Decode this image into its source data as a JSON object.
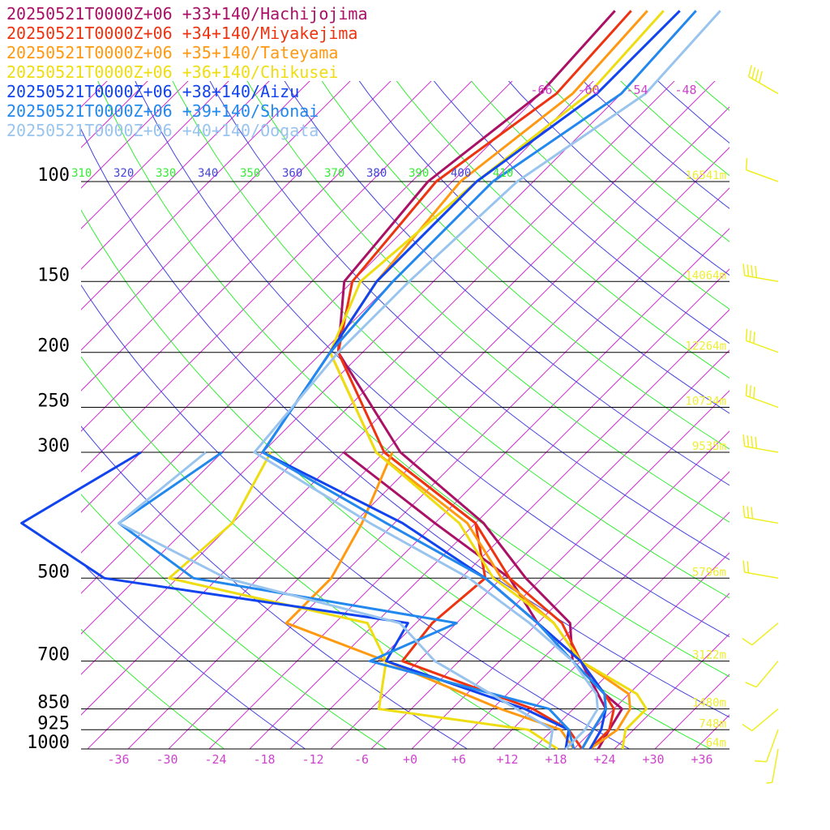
{
  "chart_data": {
    "type": "line",
    "title": "",
    "xlabel": "",
    "ylabel": "",
    "pressure_levels": [
      {
        "label": "100",
        "p": 100
      },
      {
        "label": "150",
        "p": 150
      },
      {
        "label": "200",
        "p": 200
      },
      {
        "label": "250",
        "p": 250
      },
      {
        "label": "300",
        "p": 300
      },
      {
        "label": "500",
        "p": 500
      },
      {
        "label": "700",
        "p": 700
      },
      {
        "label": "850",
        "p": 850
      },
      {
        "label": "925",
        "p": 925
      },
      {
        "label": "1000",
        "p": 1000
      }
    ],
    "temperature_ticks": [
      "-36",
      "-30",
      "-24",
      "-18",
      "-12",
      "-6",
      "+0",
      "+6",
      "+12",
      "+18",
      "+24",
      "+30",
      "+36"
    ],
    "temperature_tick_values": [
      -36,
      -30,
      -24,
      -18,
      -12,
      -6,
      0,
      6,
      12,
      18,
      24,
      30,
      36
    ],
    "upper_temperature_labels": [
      "-66",
      "-60",
      "-54",
      "-48"
    ],
    "theta_labels": [
      {
        "text": "310",
        "color": "#33ee33"
      },
      {
        "text": "320",
        "color": "#4444dd"
      },
      {
        "text": "330",
        "color": "#33ee33"
      },
      {
        "text": "340",
        "color": "#4444dd"
      },
      {
        "text": "350",
        "color": "#33ee33"
      },
      {
        "text": "360",
        "color": "#4444dd"
      },
      {
        "text": "370",
        "color": "#33ee33"
      },
      {
        "text": "380",
        "color": "#4444dd"
      },
      {
        "text": "390",
        "color": "#33ee33"
      },
      {
        "text": "400",
        "color": "#4444dd"
      },
      {
        "text": "410",
        "color": "#33ee33"
      }
    ],
    "height_labels": [
      {
        "p": 100,
        "text": "16541m"
      },
      {
        "p": 150,
        "text": "14064m"
      },
      {
        "p": 200,
        "text": "12264m"
      },
      {
        "p": 250,
        "text": "10734m"
      },
      {
        "p": 300,
        "text": "9535m"
      },
      {
        "p": 500,
        "text": "5796m"
      },
      {
        "p": 700,
        "text": "3122m"
      },
      {
        "p": 850,
        "text": "1480m"
      },
      {
        "p": 925,
        "text": "748m"
      },
      {
        "p": 1000,
        "text": "64m"
      }
    ],
    "series": [
      {
        "name": "20250521T0000Z+06 +33+140/Hachijojima",
        "color": "#aa1166",
        "temperature": [
          [
            50,
            -66
          ],
          [
            70,
            -65
          ],
          [
            100,
            -68
          ],
          [
            150,
            -66
          ],
          [
            200,
            -58
          ],
          [
            300,
            -38
          ],
          [
            400,
            -19
          ],
          [
            500,
            -7
          ],
          [
            600,
            4
          ],
          [
            700,
            9
          ],
          [
            800,
            17
          ],
          [
            850,
            21
          ],
          [
            925,
            22
          ],
          [
            1000,
            23
          ]
        ],
        "dewpoint": [
          [
            300,
            -45
          ],
          [
            400,
            -25
          ],
          [
            500,
            -9
          ],
          [
            600,
            0
          ],
          [
            700,
            10
          ],
          [
            850,
            19
          ],
          [
            925,
            20
          ],
          [
            1000,
            21
          ]
        ]
      },
      {
        "name": "20250521T0000Z+06 +34+140/Miyakejima",
        "color": "#ee3311",
        "temperature": [
          [
            50,
            -64
          ],
          [
            70,
            -63
          ],
          [
            100,
            -67
          ],
          [
            150,
            -65
          ],
          [
            200,
            -58
          ],
          [
            300,
            -40
          ],
          [
            400,
            -20
          ],
          [
            500,
            -9
          ],
          [
            600,
            3
          ],
          [
            700,
            10
          ],
          [
            800,
            17
          ],
          [
            850,
            20
          ],
          [
            925,
            22
          ],
          [
            1000,
            22
          ]
        ],
        "dewpoint": [
          [
            300,
            -40
          ],
          [
            400,
            -20
          ],
          [
            500,
            -12
          ],
          [
            600,
            -13
          ],
          [
            700,
            -12
          ],
          [
            850,
            10
          ],
          [
            925,
            17
          ],
          [
            1000,
            21
          ]
        ]
      },
      {
        "name": "20250521T0000Z+06 +35+140/Tateyama",
        "color": "#ff9911",
        "temperature": [
          [
            50,
            -62
          ],
          [
            70,
            -61
          ],
          [
            100,
            -64
          ],
          [
            150,
            -62
          ],
          [
            200,
            -59
          ],
          [
            300,
            -41
          ],
          [
            400,
            -21
          ],
          [
            500,
            -10
          ],
          [
            600,
            2
          ],
          [
            700,
            10
          ],
          [
            800,
            20
          ],
          [
            850,
            22
          ],
          [
            925,
            23
          ],
          [
            1000,
            22
          ]
        ],
        "dewpoint": [
          [
            300,
            -39
          ],
          [
            400,
            -34
          ],
          [
            500,
            -31
          ],
          [
            600,
            -31
          ],
          [
            700,
            -14
          ],
          [
            850,
            6
          ],
          [
            925,
            16
          ],
          [
            1000,
            20
          ]
        ]
      },
      {
        "name": "20250521T0000Z+06 +36+140/Chikusei",
        "color": "#eedd11",
        "temperature": [
          [
            50,
            -60
          ],
          [
            70,
            -59
          ],
          [
            100,
            -62
          ],
          [
            150,
            -64
          ],
          [
            200,
            -59
          ],
          [
            300,
            -41
          ],
          [
            400,
            -22
          ],
          [
            500,
            -11
          ],
          [
            600,
            2
          ],
          [
            700,
            10
          ],
          [
            800,
            21
          ],
          [
            850,
            24
          ],
          [
            925,
            24
          ],
          [
            1000,
            26
          ]
        ],
        "dewpoint": [
          [
            300,
            -54
          ],
          [
            400,
            -50
          ],
          [
            500,
            -51
          ],
          [
            600,
            -21
          ],
          [
            700,
            -14
          ],
          [
            850,
            -9
          ],
          [
            925,
            12
          ],
          [
            1000,
            18
          ]
        ]
      },
      {
        "name": "20250521T0000Z+06 +38+140/Aizu",
        "color": "#1144ee",
        "temperature": [
          [
            50,
            -58
          ],
          [
            70,
            -58
          ],
          [
            100,
            -62
          ],
          [
            150,
            -62
          ],
          [
            200,
            -59
          ],
          [
            300,
            -55
          ],
          [
            400,
            -29
          ],
          [
            500,
            -12
          ],
          [
            600,
            0
          ],
          [
            700,
            10
          ],
          [
            800,
            17
          ],
          [
            850,
            19
          ],
          [
            925,
            21
          ],
          [
            1000,
            22
          ]
        ],
        "dewpoint": [
          [
            300,
            -70
          ],
          [
            400,
            -76
          ],
          [
            500,
            -59
          ],
          [
            600,
            -16
          ],
          [
            700,
            -14
          ],
          [
            850,
            9
          ],
          [
            925,
            17
          ],
          [
            1000,
            19
          ]
        ]
      },
      {
        "name": "20250521T0000Z+06 +39+140/Shonai",
        "color": "#2288ee",
        "temperature": [
          [
            50,
            -56
          ],
          [
            70,
            -55
          ],
          [
            100,
            -60
          ],
          [
            150,
            -60
          ],
          [
            200,
            -59
          ],
          [
            300,
            -55
          ],
          [
            400,
            -31
          ],
          [
            500,
            -12
          ],
          [
            600,
            0
          ],
          [
            700,
            9
          ],
          [
            800,
            17
          ],
          [
            850,
            19
          ],
          [
            925,
            20
          ],
          [
            1000,
            21
          ]
        ],
        "dewpoint": [
          [
            300,
            -60
          ],
          [
            400,
            -64
          ],
          [
            500,
            -48
          ],
          [
            600,
            -10
          ],
          [
            700,
            -16
          ],
          [
            850,
            12
          ],
          [
            925,
            17
          ],
          [
            1000,
            20
          ]
        ]
      },
      {
        "name": "20250521T0000Z+06 +40+140/Oogata",
        "color": "#99c4ee",
        "temperature": [
          [
            50,
            -53
          ],
          [
            70,
            -52
          ],
          [
            100,
            -57
          ],
          [
            150,
            -58
          ],
          [
            200,
            -58
          ],
          [
            300,
            -56
          ],
          [
            400,
            -33
          ],
          [
            500,
            -14
          ],
          [
            600,
            -1
          ],
          [
            700,
            9
          ],
          [
            800,
            16
          ],
          [
            850,
            18
          ],
          [
            925,
            19
          ],
          [
            1000,
            19
          ]
        ],
        "dewpoint": [
          [
            300,
            -62
          ],
          [
            400,
            -64
          ],
          [
            500,
            -44
          ],
          [
            600,
            -17
          ],
          [
            700,
            -8
          ],
          [
            850,
            8
          ],
          [
            925,
            15
          ],
          [
            1000,
            17
          ]
        ]
      }
    ],
    "wind_barbs": [
      {
        "p": 70,
        "speed": 40,
        "dir": 300
      },
      {
        "p": 100,
        "speed": 10,
        "dir": 290
      },
      {
        "p": 150,
        "speed": 40,
        "dir": 280
      },
      {
        "p": 200,
        "speed": 30,
        "dir": 290
      },
      {
        "p": 250,
        "speed": 30,
        "dir": 290
      },
      {
        "p": 300,
        "speed": 40,
        "dir": 280
      },
      {
        "p": 400,
        "speed": 30,
        "dir": 280
      },
      {
        "p": 500,
        "speed": 20,
        "dir": 280
      },
      {
        "p": 600,
        "speed": 10,
        "dir": 230
      },
      {
        "p": 700,
        "speed": 10,
        "dir": 220
      },
      {
        "p": 850,
        "speed": 10,
        "dir": 230
      },
      {
        "p": 925,
        "speed": 10,
        "dir": 200
      },
      {
        "p": 1000,
        "speed": 5,
        "dir": 190
      }
    ],
    "colors": {
      "isobar": "#000000",
      "isotherm": "#cc33cc",
      "dry_adiabat": "#33ee33",
      "moist_adiabat": "#4444dd",
      "barb": "#eeee22"
    }
  }
}
